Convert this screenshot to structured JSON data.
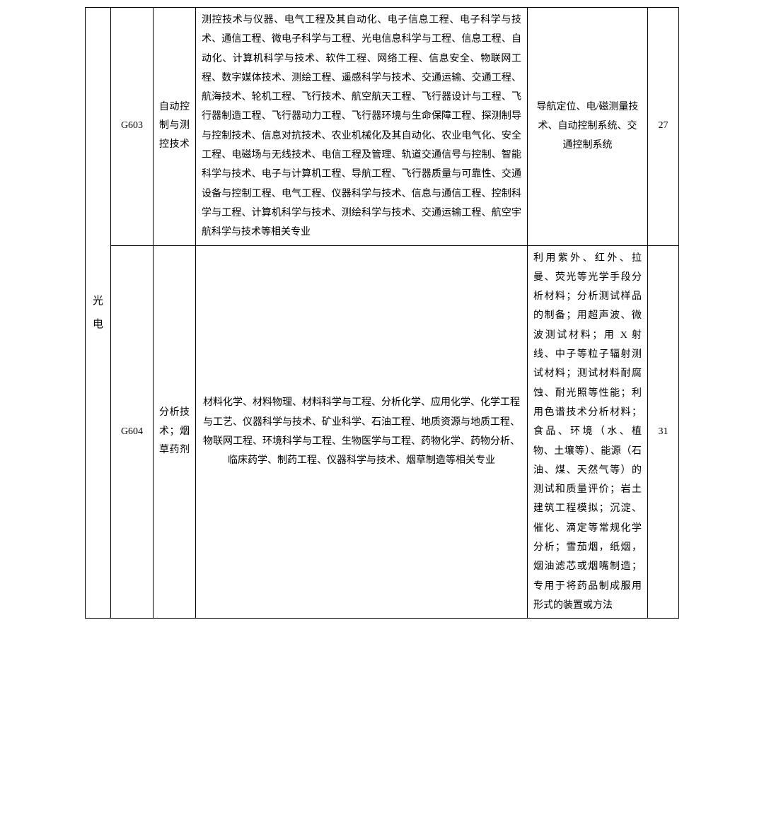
{
  "table": {
    "category": "光电",
    "rows": [
      {
        "code": "G603",
        "field": "自动控制与测控技术",
        "majors": "测控技术与仪器、电气工程及其自动化、电子信息工程、电子科学与技术、通信工程、微电子科学与工程、光电信息科学与工程、信息工程、自动化、计算机科学与技术、软件工程、网络工程、信息安全、物联网工程、数字媒体技术、测绘工程、遥感科学与技术、交通运输、交通工程、航海技术、轮机工程、飞行技术、航空航天工程、飞行器设计与工程、飞行器制造工程、飞行器动力工程、飞行器环境与生命保障工程、探测制导与控制技术、信息对抗技术、农业机械化及其自动化、农业电气化、安全工程、电磁场与无线技术、电信工程及管理、轨道交通信号与控制、智能科学与技术、电子与计算机工程、导航工程、飞行器质量与可靠性、交通设备与控制工程、电气工程、仪器科学与技术、信息与通信工程、控制科学与工程、计算机科学与技术、测绘科学与技术、交通运输工程、航空宇航科学与技术等相关专业",
        "direction": "导航定位、电/磁测量技术、自动控制系统、交通控制系统",
        "direction_centered": true,
        "count": "27"
      },
      {
        "code": "G604",
        "field": "分析技术；烟草药剂",
        "majors": "材料化学、材料物理、材料科学与工程、分析化学、应用化学、化学工程与工艺、仪器科学与技术、矿业科学、石油工程、地质资源与地质工程、物联网工程、环境科学与工程、生物医学与工程、药物化学、药物分析、临床药学、制药工程、仪器科学与技术、烟草制造等相关专业",
        "direction": "利用紫外、红外、拉曼、荧光等光学手段分析材料；分析测试样品的制备；用超声波、微波测试材料；用 X 射线、中子等粒子辐射测试材料；测试材料耐腐蚀、耐光照等性能；利用色谱技术分析材料；食品、环境（水、植物、土壤等）、能源（石油、煤、天然气等）的测试和质量评价；岩土建筑工程模拟；沉淀、催化、滴定等常规化学分析；雪茄烟，纸烟，烟油滤芯或烟嘴制造；专用于将药品制成服用形式的装置或方法",
        "direction_centered": false,
        "count": "31"
      }
    ]
  },
  "styling": {
    "font_family": "SimSun",
    "font_size_pt": 14,
    "border_color": "#000000",
    "background_color": "#ffffff",
    "text_color": "#000000",
    "line_height": 1.9
  }
}
